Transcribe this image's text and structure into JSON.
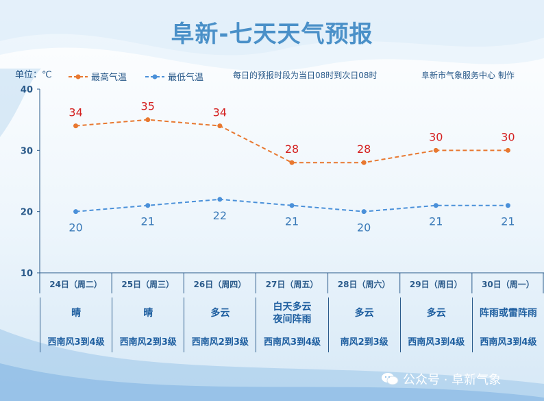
{
  "title": "阜新-七天天气预报",
  "unit_label": "单位：℃",
  "note_period": "每日的预报时段为当日08时到次日08时",
  "note_producer": "阜新市气象服务中心 制作",
  "colors": {
    "high": "#e87830",
    "low": "#4a90d9",
    "axis": "#2a5a8a",
    "hi_text": "#d42020",
    "lo_text": "#3a7ab8"
  },
  "chart_data": {
    "type": "line",
    "categories": [
      "24日（周二）",
      "25日（周三）",
      "26日（周四）",
      "27日（周五）",
      "28日（周六）",
      "29日（周日）",
      "30日（周一）"
    ],
    "series": [
      {
        "name": "最高气温",
        "values": [
          34,
          35,
          34,
          28,
          28,
          30,
          30
        ]
      },
      {
        "name": "最低气温",
        "values": [
          20,
          21,
          22,
          21,
          20,
          21,
          21
        ]
      }
    ],
    "ylim": [
      10,
      40
    ],
    "yticks": [
      10,
      20,
      30,
      40
    ],
    "legend": "top-left",
    "grid": false
  },
  "forecast": [
    {
      "weather": "晴",
      "wind": "西南风3到4级"
    },
    {
      "weather": "晴",
      "wind": "西南风2到3级"
    },
    {
      "weather": "多云",
      "wind": "西南风2到3级"
    },
    {
      "weather": "白天多云 夜间阵雨",
      "wind": "西南风3到4级"
    },
    {
      "weather": "多云",
      "wind": "南风2到3级"
    },
    {
      "weather": "多云",
      "wind": "西南风3到4级"
    },
    {
      "weather": "阵雨或雷阵雨",
      "wind": "西南风3到4级"
    }
  ],
  "watermark": "公众号 · 阜新气象"
}
